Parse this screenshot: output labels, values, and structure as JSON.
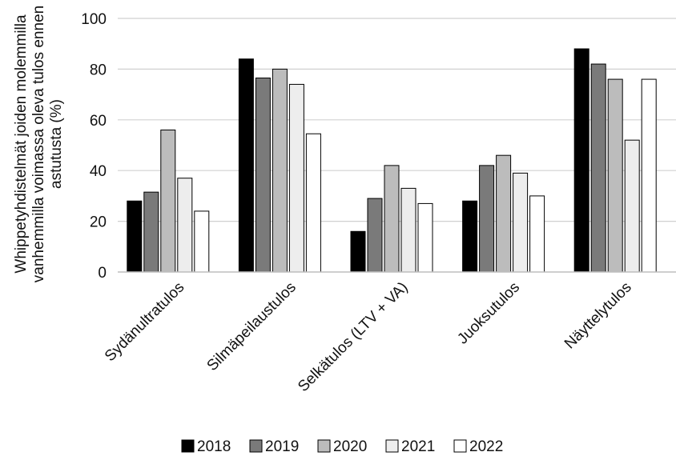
{
  "chart_data": {
    "type": "bar",
    "title": "",
    "xlabel": "",
    "ylabel_lines": [
      "Whippetyhdistelmät joiden molemmilla",
      "vanhemmilla voimassa oleva tulos ennen",
      "astutusta (%)"
    ],
    "ylim": [
      0,
      100
    ],
    "yticks": [
      0,
      20,
      40,
      60,
      80,
      100
    ],
    "grid": true,
    "legend_position": "bottom",
    "categories": [
      "Sydänultratulos",
      "Silmäpeilaustulos",
      "Selkätulos (LTV + VA)",
      "Juoksutulos",
      "Näyttelytulos"
    ],
    "series": [
      {
        "name": "2018",
        "color": "#000000",
        "values": [
          28,
          84,
          16,
          28,
          88
        ]
      },
      {
        "name": "2019",
        "color": "#7a7a7a",
        "values": [
          31.5,
          76.5,
          29,
          42,
          82
        ]
      },
      {
        "name": "2020",
        "color": "#bcbcbc",
        "values": [
          56,
          80,
          42,
          46,
          76
        ]
      },
      {
        "name": "2021",
        "color": "#ededed",
        "values": [
          37,
          74,
          33,
          39,
          52
        ]
      },
      {
        "name": "2022",
        "color": "#ffffff",
        "values": [
          24,
          54.5,
          27,
          30,
          76
        ]
      }
    ]
  }
}
